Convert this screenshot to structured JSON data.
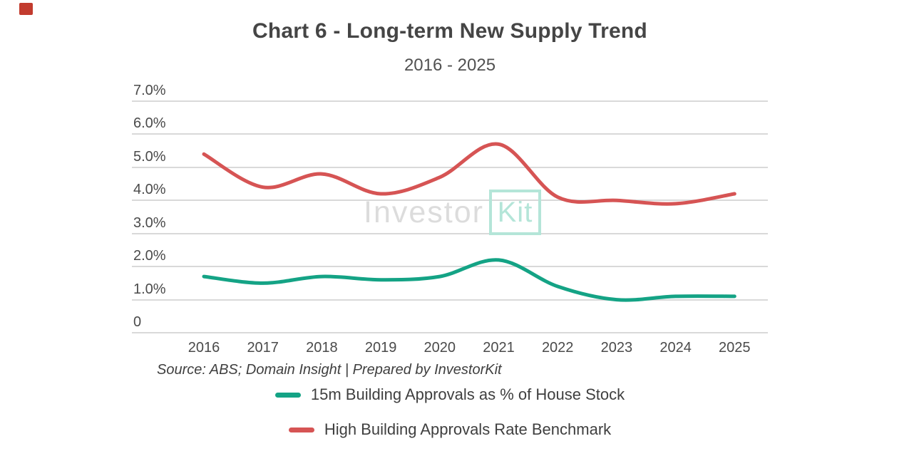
{
  "decorations": {
    "red_square_color": "#c23b2e"
  },
  "header": {
    "title": "Chart 6 - Long-term New Supply Trend",
    "subtitle": "2016 - 2025"
  },
  "watermark": {
    "part1": "Investor",
    "part2": "Kit"
  },
  "footer": {
    "source_note": "Source: ABS; Domain Insight | Prepared by InvestorKit"
  },
  "chart_data": {
    "type": "line",
    "title": "Chart 6 - Long-term New Supply Trend",
    "subtitle": "2016 - 2025",
    "categories": [
      "2016",
      "2017",
      "2018",
      "2019",
      "2020",
      "2021",
      "2022",
      "2023",
      "2024",
      "2025"
    ],
    "series": [
      {
        "name": "15m Building Approvals as % of House Stock",
        "color": "#14a385",
        "values": [
          1.7,
          1.5,
          1.7,
          1.6,
          1.7,
          2.2,
          1.4,
          1.0,
          1.1,
          1.1
        ]
      },
      {
        "name": "High Building Approvals Rate Benchmark",
        "color": "#d65454",
        "values": [
          5.4,
          4.4,
          4.8,
          4.2,
          4.7,
          5.7,
          4.1,
          4.0,
          3.9,
          4.2
        ]
      }
    ],
    "ylim": [
      0,
      7
    ],
    "ytick_labels_top_to_bottom": [
      "7.0%",
      "6.0%",
      "5.0%",
      "4.0%",
      "3.0%",
      "2.0%",
      "1.0%",
      "0"
    ],
    "xlabel": "",
    "ylabel": "",
    "grid": true,
    "legend_position": "bottom",
    "line_style": "smooth"
  }
}
